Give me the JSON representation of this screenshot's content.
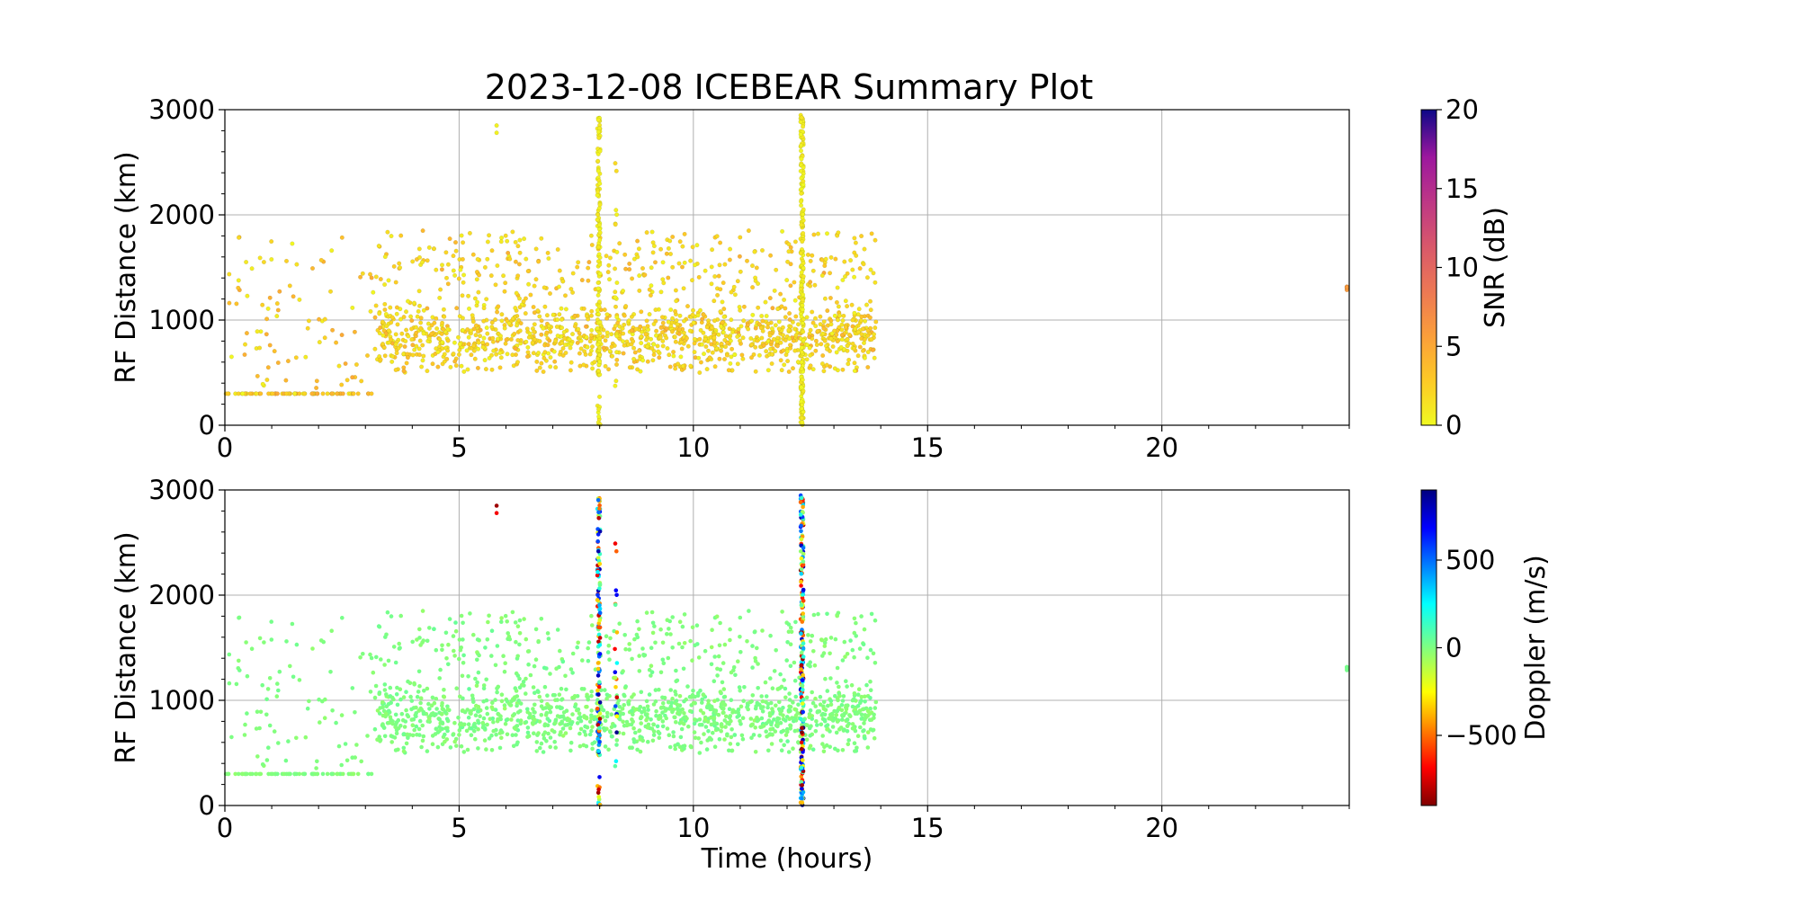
{
  "figure": {
    "title": "2023-12-08 ICEBEAR Summary Plot"
  },
  "chart_data": [
    {
      "type": "scatter",
      "name": "snr-panel",
      "xlabel": "",
      "ylabel": "RF Distance (km)",
      "xlim": [
        0,
        24
      ],
      "ylim": [
        0,
        3000
      ],
      "x_ticks": [
        0,
        5,
        10,
        15,
        20
      ],
      "x_tick_labels": [
        "0",
        "5",
        "10",
        "15",
        "20"
      ],
      "y_ticks": [
        0,
        1000,
        2000,
        3000
      ],
      "y_tick_labels": [
        "0",
        "1000",
        "2000",
        "3000"
      ],
      "grid": true,
      "color_variable": "SNR (dB)",
      "colormap": "plasma_r",
      "colorbar": {
        "label": "SNR (dB)",
        "range": [
          0,
          20
        ],
        "ticks": [
          0,
          5,
          10,
          15,
          20
        ],
        "tick_labels": [
          "0",
          "5",
          "10",
          "15",
          "20"
        ]
      },
      "data_note": "dense scatter of detections between 0 and ~14 h, 300-2000 km, plus vertical streaks near 8.0 h and 12.3 h"
    },
    {
      "type": "scatter",
      "name": "doppler-panel",
      "xlabel": "Time (hours)",
      "ylabel": "RF Distance (km)",
      "xlim": [
        0,
        24
      ],
      "ylim": [
        0,
        3000
      ],
      "x_ticks": [
        0,
        5,
        10,
        15,
        20
      ],
      "x_tick_labels": [
        "0",
        "5",
        "10",
        "15",
        "20"
      ],
      "y_ticks": [
        0,
        1000,
        2000,
        3000
      ],
      "y_tick_labels": [
        "0",
        "1000",
        "2000",
        "3000"
      ],
      "grid": true,
      "color_variable": "Doppler (m/s)",
      "colormap": "jet_r",
      "colorbar": {
        "label": "Doppler (m/s)",
        "range": [
          -900,
          900
        ],
        "ticks": [
          -500,
          0,
          500
        ],
        "tick_labels": [
          "−500",
          "0",
          "500"
        ]
      }
    }
  ]
}
